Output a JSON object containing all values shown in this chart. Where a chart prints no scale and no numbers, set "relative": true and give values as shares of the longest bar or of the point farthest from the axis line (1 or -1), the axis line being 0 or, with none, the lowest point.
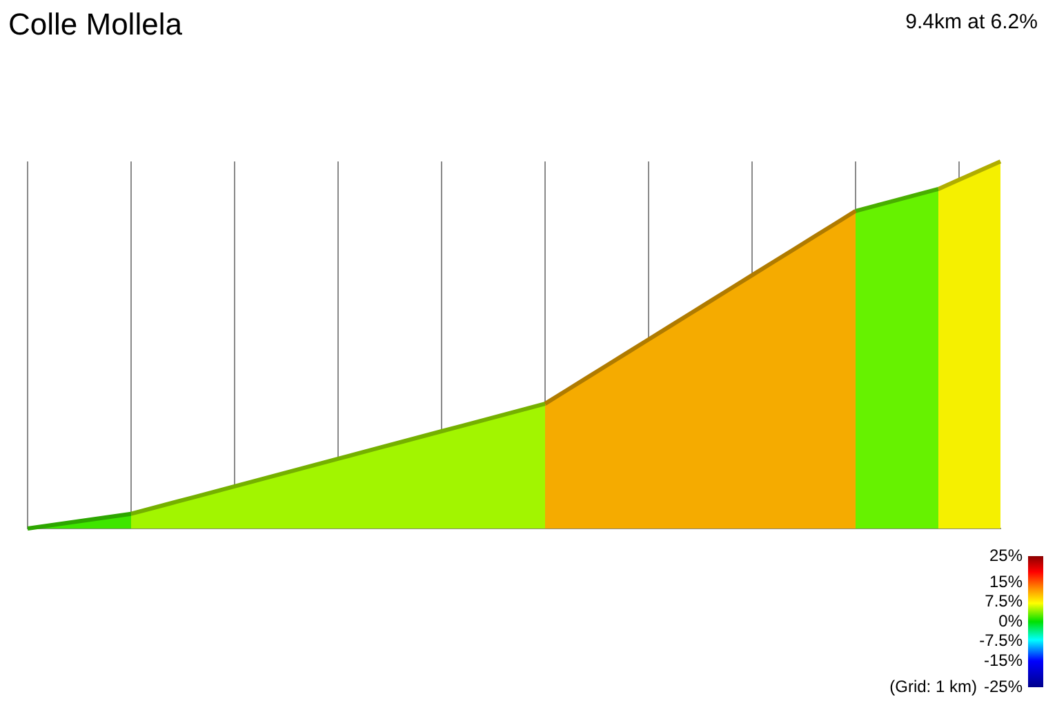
{
  "chart_data": {
    "type": "area",
    "title": "Colle Mollela",
    "subtitle": "9.4km at 6.2%",
    "annotations": [
      "(Grid: 1 km)"
    ],
    "relative": true,
    "grid": "x",
    "clim": [
      -25,
      25
    ],
    "cticks": [
      {
        "value": 25,
        "label": "25%"
      },
      {
        "value": 15,
        "label": "15%"
      },
      {
        "value": 7.5,
        "label": "7.5%"
      },
      {
        "value": 0,
        "label": "0%"
      },
      {
        "value": -7.5,
        "label": "-7.5%"
      },
      {
        "value": -15,
        "label": "-15%"
      },
      {
        "value": -25,
        "label": "-25%"
      }
    ],
    "categories": [
      null,
      null,
      null,
      null,
      null,
      null,
      null,
      null,
      null,
      null,
      null,
      null,
      null,
      null,
      null,
      null,
      null,
      null,
      null,
      null,
      null,
      null,
      null,
      null,
      null,
      null,
      null,
      null,
      null,
      null,
      null,
      null,
      null,
      null,
      null,
      null,
      null,
      null,
      null,
      null,
      null,
      null,
      null,
      null,
      null,
      null,
      null,
      null
    ],
    "series": [
      {
        "color": "#3fe600",
        "values": [
          0,
          0.008,
          0.016,
          0.024,
          0.032,
          0.04,
          null,
          null,
          null,
          null,
          null,
          null,
          null,
          null,
          null,
          null,
          null,
          null,
          null,
          null,
          null,
          null,
          null,
          null,
          null,
          null,
          null,
          null,
          null,
          null,
          null,
          null,
          null,
          null,
          null,
          null,
          null,
          null,
          null,
          null,
          null,
          null,
          null,
          null,
          null,
          null,
          null,
          null
        ]
      },
      {
        "color": "#a2f500",
        "values": [
          null,
          null,
          null,
          null,
          null,
          0.04,
          0.055,
          0.07,
          0.085,
          0.1,
          0.115,
          0.13,
          0.145,
          0.16,
          0.175,
          0.19,
          0.205,
          0.22,
          0.235,
          0.25,
          0.265,
          0.28,
          0.295,
          0.31,
          0.325,
          0.34,
          null,
          null,
          null,
          null,
          null,
          null,
          null,
          null,
          null,
          null,
          null,
          null,
          null,
          null,
          null,
          null,
          null,
          null,
          null,
          null,
          null,
          null
        ]
      },
      {
        "color": "#f5ab00",
        "values": [
          null,
          null,
          null,
          null,
          null,
          null,
          null,
          null,
          null,
          null,
          null,
          null,
          null,
          null,
          null,
          null,
          null,
          null,
          null,
          null,
          null,
          null,
          null,
          null,
          null,
          0.34,
          0.375,
          0.41,
          0.445,
          0.48,
          0.515,
          0.55,
          0.585,
          0.62,
          0.655,
          0.69,
          0.725,
          0.76,
          0.795,
          0.83,
          0.865,
          null,
          null,
          null,
          null,
          null,
          null,
          null
        ]
      },
      {
        "color": "#66f200",
        "values": [
          null,
          null,
          null,
          null,
          null,
          null,
          null,
          null,
          null,
          null,
          null,
          null,
          null,
          null,
          null,
          null,
          null,
          null,
          null,
          null,
          null,
          null,
          null,
          null,
          null,
          null,
          null,
          null,
          null,
          null,
          null,
          null,
          null,
          null,
          null,
          null,
          null,
          null,
          null,
          null,
          0.865,
          0.88,
          0.895,
          0.91,
          0.925,
          null,
          null,
          null
        ]
      },
      {
        "color": "#f5f000",
        "values": [
          null,
          null,
          null,
          null,
          null,
          null,
          null,
          null,
          null,
          null,
          null,
          null,
          null,
          null,
          null,
          null,
          null,
          null,
          null,
          null,
          null,
          null,
          null,
          null,
          null,
          null,
          null,
          null,
          null,
          null,
          null,
          null,
          null,
          null,
          null,
          null,
          null,
          null,
          null,
          null,
          null,
          null,
          null,
          null,
          0.925,
          0.95,
          0.975,
          1
        ]
      }
    ]
  }
}
